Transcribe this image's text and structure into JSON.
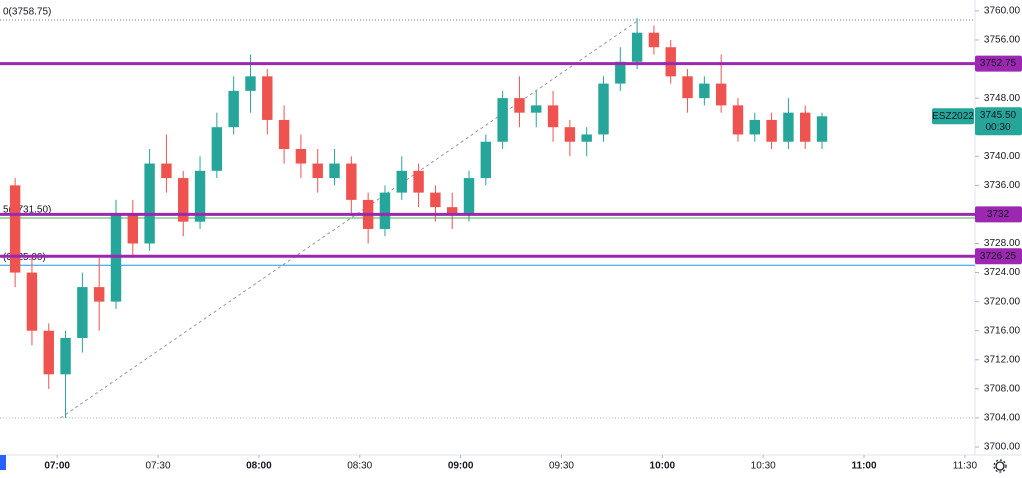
{
  "chart_data": {
    "type": "candlestick",
    "x": [
      "06:45",
      "06:50",
      "06:55",
      "07:00",
      "07:05",
      "07:10",
      "07:15",
      "07:20",
      "07:25",
      "07:30",
      "07:35",
      "07:40",
      "07:45",
      "07:50",
      "07:55",
      "08:00",
      "08:05",
      "08:10",
      "08:15",
      "08:20",
      "08:25",
      "08:30",
      "08:35",
      "08:40",
      "08:45",
      "08:50",
      "08:55",
      "09:00",
      "09:05",
      "09:10",
      "09:15",
      "09:20",
      "09:25",
      "09:30",
      "09:35",
      "09:40",
      "09:45",
      "09:50",
      "09:55",
      "10:00",
      "10:05",
      "10:10",
      "10:15",
      "10:20",
      "10:25",
      "10:30",
      "10:35",
      "10:40",
      "10:45"
    ],
    "open": [
      3736,
      3724,
      3716,
      3710,
      3715,
      3722,
      3720,
      3732,
      3728,
      3739,
      3737,
      3731,
      3738,
      3744,
      3749,
      3751,
      3745,
      3741,
      3739,
      3737,
      3739,
      3734,
      3730,
      3735,
      3738,
      3735,
      3733,
      3732,
      3737,
      3742,
      3748,
      3746,
      3747,
      3744,
      3742,
      3743,
      3750,
      3753,
      3757,
      3755,
      3751,
      3748,
      3750,
      3747,
      3743,
      3745,
      3742,
      3746,
      3742
    ],
    "high": [
      3737,
      3726,
      3717,
      3716,
      3724,
      3726,
      3734,
      3734,
      3741,
      3743,
      3738,
      3740,
      3746,
      3751,
      3754,
      3752,
      3747,
      3743,
      3741,
      3741,
      3740,
      3735,
      3736,
      3740,
      3739,
      3736,
      3735,
      3738,
      3743,
      3749,
      3751,
      3749,
      3749,
      3745,
      3744,
      3751,
      3755,
      3759,
      3758,
      3756,
      3752,
      3751,
      3754,
      3748,
      3746,
      3746,
      3748,
      3747,
      3746
    ],
    "low": [
      3722,
      3714,
      3708,
      3704,
      3713,
      3716,
      3719,
      3726,
      3727,
      3735,
      3729,
      3730,
      3737,
      3743,
      3746,
      3743,
      3739,
      3737,
      3735,
      3736,
      3732,
      3728,
      3729,
      3734,
      3733,
      3731,
      3730,
      3731,
      3736,
      3741,
      3744,
      3744,
      3742,
      3740,
      3740,
      3742,
      3749,
      3752,
      3754,
      3750,
      3746,
      3747,
      3746,
      3742,
      3742,
      3741,
      3741,
      3741,
      3741
    ],
    "close": [
      3724,
      3716,
      3710,
      3715,
      3722,
      3720,
      3732,
      3728,
      3739,
      3737,
      3731,
      3738,
      3744,
      3749,
      3751,
      3745,
      3741,
      3739,
      3737,
      3739,
      3734,
      3730,
      3735,
      3738,
      3735,
      3733,
      3732,
      3737,
      3742,
      3748,
      3746,
      3747,
      3744,
      3742,
      3743,
      3750,
      3753,
      3757,
      3755,
      3751,
      3748,
      3750,
      3747,
      3743,
      3745,
      3742,
      3746,
      3742,
      3745.5
    ],
    "up_color": "#26a69a",
    "down_color": "#ef5350",
    "xlim": [
      "06:43",
      "11:33"
    ],
    "xticks": [
      "07:00",
      "07:30",
      "08:00",
      "08:30",
      "09:00",
      "09:30",
      "10:00",
      "10:30",
      "11:00",
      "11:30"
    ],
    "ylim": [
      3698.9,
      3761.5
    ],
    "yticks": [
      {
        "value": 3700,
        "label": "3700.00"
      },
      {
        "value": 3704,
        "label": "3704.00"
      },
      {
        "value": 3708,
        "label": "3708.00"
      },
      {
        "value": 3712,
        "label": "3712.00"
      },
      {
        "value": 3716,
        "label": "3716.00"
      },
      {
        "value": 3720,
        "label": "3720.00"
      },
      {
        "value": 3724,
        "label": "3724.00"
      },
      {
        "value": 3728,
        "label": "3728.00"
      },
      {
        "value": 3732,
        "label": "3732.00"
      },
      {
        "value": 3736,
        "label": "3736.00"
      },
      {
        "value": 3740,
        "label": "3740.00"
      },
      {
        "value": 3744,
        "label": "3744.00"
      },
      {
        "value": 3748,
        "label": "3748.00"
      },
      {
        "value": 3752,
        "label": "3752.00"
      },
      {
        "value": 3756,
        "label": "3756.00"
      },
      {
        "value": 3760,
        "label": "3760.00"
      }
    ],
    "levels": [
      {
        "value": 3752.75,
        "color": "#9c27b0"
      },
      {
        "value": 3732.0,
        "label": "3732.00",
        "color": "#9c27b0"
      },
      {
        "value": 3726.25,
        "color": "#9c27b0"
      }
    ],
    "fib_levels": [
      {
        "value": 3758.75,
        "label": "0(3758.75)",
        "color": "#787b86"
      },
      {
        "value": 3731.5,
        "label": "5(3731.50)",
        "color": "#4caf50"
      },
      {
        "value": 3725,
        "label": "(3725.00)",
        "color": "#2196f3"
      }
    ],
    "trend_line": {
      "x": [
        "07:01",
        "09:53"
      ],
      "y": [
        3704,
        3758.75
      ]
    },
    "last_price": {
      "symbol": "ESZ2022",
      "value": 3745.5,
      "label": "3745.50",
      "countdown": "00:30"
    }
  }
}
